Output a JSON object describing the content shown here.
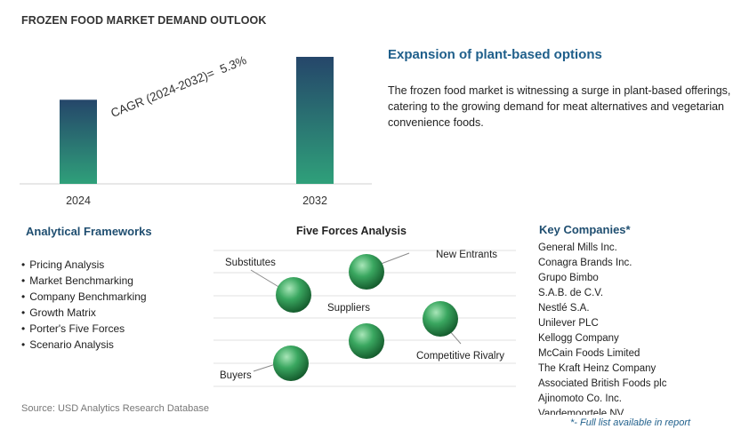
{
  "title": "FROZEN FOOD MARKET DEMAND OUTLOOK",
  "chart_data": {
    "type": "bar",
    "categories": [
      "2024",
      "2032"
    ],
    "values": [
      1.0,
      1.51
    ],
    "annotation": {
      "label": "CAGR (2024-2032)=",
      "value": "5.3%"
    },
    "colors": {
      "bar_top": "#25466a",
      "bar_bottom": "#2fa07a"
    }
  },
  "highlight": {
    "heading": "Expansion of plant-based options",
    "text": "The frozen food market is witnessing a surge in plant-based offerings, catering to the growing demand for meat alternatives and vegetarian convenience foods."
  },
  "frameworks": {
    "heading": "Analytical Frameworks",
    "items": [
      "Pricing Analysis",
      "Market Benchmarking",
      "Company Benchmarking",
      "Growth Matrix",
      "Porter's Five Forces",
      "Scenario Analysis"
    ]
  },
  "five_forces": {
    "heading": "Five Forces Analysis",
    "labels": {
      "substitutes": "Substitutes",
      "new_entrants": "New Entrants",
      "suppliers": "Suppliers",
      "competitive_rivalry": "Competitive Rivalry",
      "buyers": "Buyers"
    },
    "colors": {
      "sphere_light": "#a8e6b8",
      "sphere_mid": "#3aa760",
      "sphere_dark": "#145a2c"
    }
  },
  "key_companies": {
    "heading": "Key Companies*",
    "items": [
      "General Mills Inc.",
      "Conagra Brands Inc.",
      "Grupo Bimbo",
      "S.A.B. de C.V.",
      "Nestlé S.A.",
      "Unilever PLC",
      "Kellogg Company",
      "McCain Foods Limited",
      "The Kraft Heinz Company",
      "Associated British Foods plc",
      "Ajinomoto Co. Inc.",
      "Vandemoortele NV"
    ],
    "footnote": "*- Full list available in report"
  },
  "source": "Source: USD Analytics Research Database"
}
